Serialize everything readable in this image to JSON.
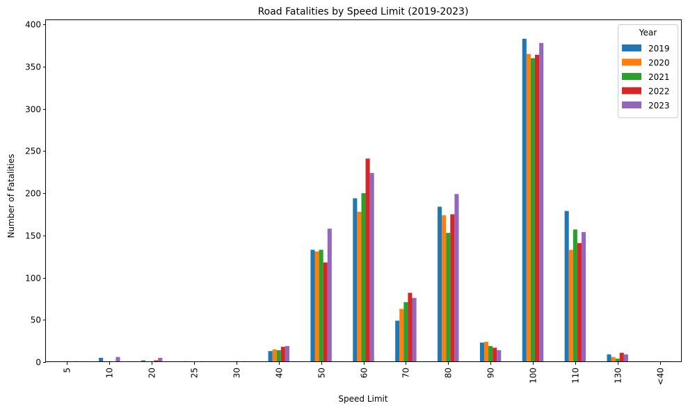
{
  "chart_data": {
    "type": "bar",
    "title": "Road Fatalities by Speed Limit (2019-2023)",
    "xlabel": "Speed Limit",
    "ylabel": "Number of Fatalities",
    "categories": [
      "5",
      "10",
      "20",
      "25",
      "30",
      "40",
      "50",
      "60",
      "70",
      "80",
      "90",
      "100",
      "110",
      "130",
      "<40"
    ],
    "ylim": [
      0,
      405
    ],
    "yticks": [
      0,
      50,
      100,
      150,
      200,
      250,
      300,
      350,
      400
    ],
    "legend": {
      "title": "Year",
      "placement": "top-right"
    },
    "grid": false,
    "series": [
      {
        "name": "2019",
        "color": "#1f77b4",
        "values": [
          0,
          5,
          2,
          1,
          0,
          13,
          133,
          194,
          49,
          184,
          23,
          383,
          179,
          9,
          0
        ]
      },
      {
        "name": "2020",
        "color": "#ff7f0e",
        "values": [
          0,
          1,
          0,
          0,
          1,
          15,
          131,
          178,
          63,
          174,
          24,
          365,
          133,
          6,
          0
        ]
      },
      {
        "name": "2021",
        "color": "#2ca02c",
        "values": [
          1,
          1,
          1,
          0,
          1,
          14,
          133,
          200,
          71,
          153,
          19,
          360,
          157,
          4,
          0
        ]
      },
      {
        "name": "2022",
        "color": "#d62728",
        "values": [
          0,
          0,
          2,
          0,
          0,
          18,
          118,
          241,
          82,
          175,
          17,
          364,
          141,
          11,
          1
        ]
      },
      {
        "name": "2023",
        "color": "#9467bd",
        "values": [
          1,
          6,
          5,
          1,
          1,
          19,
          158,
          224,
          76,
          199,
          14,
          378,
          154,
          9,
          1
        ]
      }
    ]
  }
}
